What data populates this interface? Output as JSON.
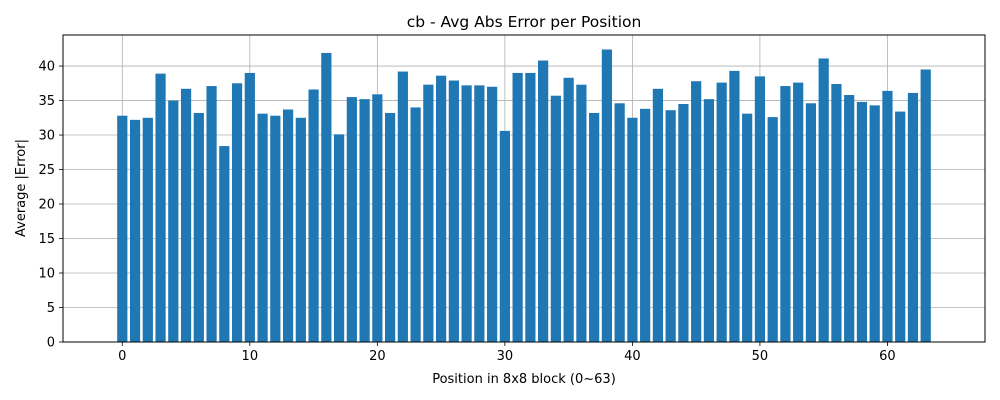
{
  "chart_data": {
    "type": "bar",
    "title": "cb - Avg Abs Error per Position",
    "xlabel": "Position in 8x8 block (0~63)",
    "ylabel": "Average |Error|",
    "x": [
      0,
      1,
      2,
      3,
      4,
      5,
      6,
      7,
      8,
      9,
      10,
      11,
      12,
      13,
      14,
      15,
      16,
      17,
      18,
      19,
      20,
      21,
      22,
      23,
      24,
      25,
      26,
      27,
      28,
      29,
      30,
      31,
      32,
      33,
      34,
      35,
      36,
      37,
      38,
      39,
      40,
      41,
      42,
      43,
      44,
      45,
      46,
      47,
      48,
      49,
      50,
      51,
      52,
      53,
      54,
      55,
      56,
      57,
      58,
      59,
      60,
      61,
      62,
      63
    ],
    "values": [
      32.8,
      32.2,
      32.5,
      38.9,
      35.0,
      36.7,
      33.2,
      37.1,
      28.4,
      37.5,
      39.0,
      33.1,
      32.8,
      33.7,
      32.5,
      36.6,
      41.9,
      30.1,
      35.5,
      35.2,
      35.9,
      33.2,
      39.2,
      34.0,
      37.3,
      38.6,
      37.9,
      37.2,
      37.2,
      37.0,
      30.6,
      39.0,
      39.0,
      40.8,
      35.7,
      38.3,
      37.3,
      33.2,
      42.4,
      34.6,
      32.5,
      33.8,
      36.7,
      33.6,
      34.5,
      37.8,
      35.2,
      37.6,
      39.3,
      33.1,
      38.5,
      32.6,
      37.1,
      37.6,
      34.6,
      41.1,
      37.4,
      35.8,
      34.8,
      34.3,
      36.4,
      33.4,
      36.1,
      39.5
    ],
    "xticks": [
      0,
      10,
      20,
      30,
      40,
      50,
      60
    ],
    "yticks": [
      0,
      5,
      10,
      15,
      20,
      25,
      30,
      35,
      40
    ],
    "xlim": [
      -4.65,
      67.65
    ],
    "ylim": [
      0,
      44.5
    ],
    "grid": true,
    "bar_color": "#1f77b4"
  }
}
